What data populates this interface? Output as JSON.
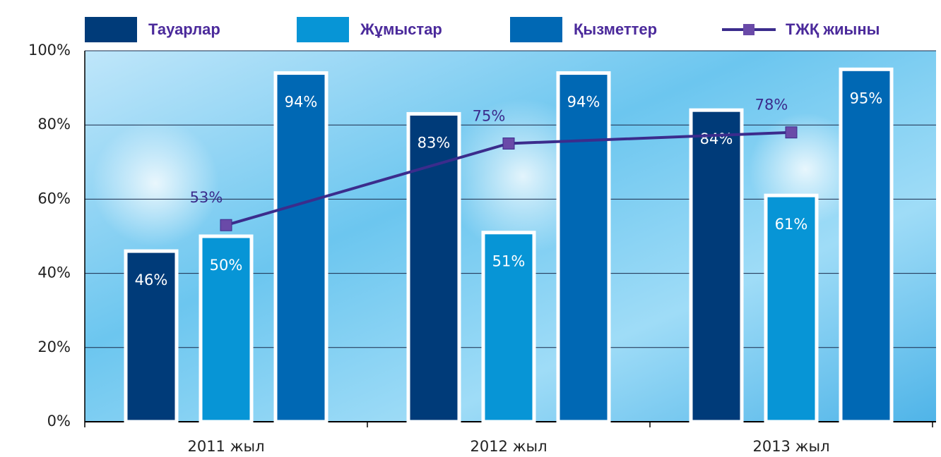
{
  "chart_data": {
    "type": "bar",
    "categories": [
      "2011 жыл",
      "2012 жыл",
      "2013 жыл"
    ],
    "series": [
      {
        "name": "Тауарлар",
        "color": "#003b79",
        "values": [
          46,
          83,
          84
        ],
        "value_labels": [
          "46%",
          "83%",
          "84%"
        ]
      },
      {
        "name": "Жұмыстар",
        "color": "#0795d6",
        "values": [
          50,
          51,
          61
        ],
        "value_labels": [
          "50%",
          "51%",
          "61%"
        ]
      },
      {
        "name": "Қызметтер",
        "color": "#0068b4",
        "values": [
          94,
          94,
          95
        ],
        "value_labels": [
          "94%",
          "94%",
          "95%"
        ]
      },
      {
        "name": "ТЖҚ жиыны",
        "type": "line",
        "color": "#3b2c8c",
        "values": [
          53,
          75,
          78
        ],
        "value_labels": [
          "53%",
          "75%",
          "78%"
        ]
      }
    ],
    "ylim": [
      0,
      100
    ],
    "yticks": [
      {
        "value": 0,
        "label": "0%"
      },
      {
        "value": 20,
        "label": "20%"
      },
      {
        "value": 40,
        "label": "40%"
      },
      {
        "value": 60,
        "label": "60%"
      },
      {
        "value": 80,
        "label": "80%"
      },
      {
        "value": 100,
        "label": "100%"
      }
    ],
    "grid": true
  }
}
